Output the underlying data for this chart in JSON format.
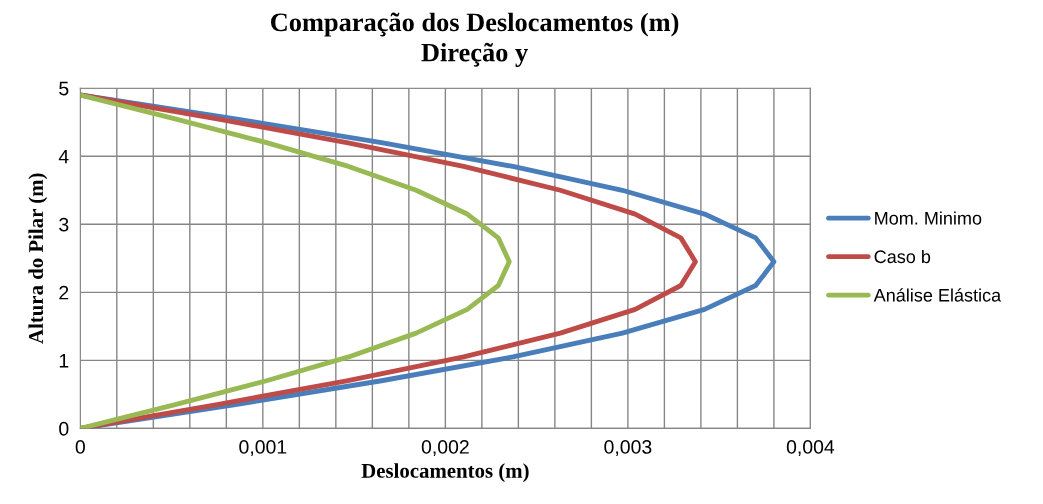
{
  "chart_data": {
    "type": "line",
    "title": "Comparação dos Deslocamentos (m)",
    "subtitle": "Direção y",
    "xlabel": "Deslocamentos (m)",
    "ylabel": "Altura do Pilar (m)",
    "series": [
      {
        "name": "Mom. Minimo",
        "color": "#4a7ebb",
        "x": [
          0,
          0.00085,
          0.00165,
          0.00237,
          0.00297,
          0.00342,
          0.0037,
          0.0038,
          0.0037,
          0.00342,
          0.00297,
          0.00237,
          0.00165,
          0.00085,
          0
        ],
        "values": [
          0,
          0.35,
          0.7,
          1.05,
          1.4,
          1.75,
          2.1,
          2.45,
          2.8,
          3.15,
          3.5,
          3.85,
          4.2,
          4.55,
          4.9
        ]
      },
      {
        "name": "Caso b",
        "color": "#be4b48",
        "x": [
          0,
          0.00075,
          0.00146,
          0.0021,
          0.00263,
          0.00304,
          0.00329,
          0.00337,
          0.00329,
          0.00304,
          0.00263,
          0.0021,
          0.00146,
          0.00075,
          0
        ],
        "values": [
          0,
          0.35,
          0.7,
          1.05,
          1.4,
          1.75,
          2.1,
          2.45,
          2.8,
          3.15,
          3.5,
          3.85,
          4.2,
          4.55,
          4.9
        ]
      },
      {
        "name": "Análise Elástica",
        "color": "#98b954",
        "x": [
          0,
          0.00052,
          0.00102,
          0.00147,
          0.00184,
          0.00212,
          0.00229,
          0.00235,
          0.00229,
          0.00212,
          0.00184,
          0.00147,
          0.00102,
          0.00052,
          0
        ],
        "values": [
          0,
          0.35,
          0.7,
          1.05,
          1.4,
          1.75,
          2.1,
          2.45,
          2.8,
          3.15,
          3.5,
          3.85,
          4.2,
          4.55,
          4.9
        ]
      }
    ],
    "xlim": [
      0,
      0.004
    ],
    "xticks": [
      {
        "value": 0,
        "label": "0"
      },
      {
        "value": 0.0002,
        "label": null
      },
      {
        "value": 0.0004,
        "label": null
      },
      {
        "value": 0.0006,
        "label": null
      },
      {
        "value": 0.0008,
        "label": null
      },
      {
        "value": 0.001,
        "label": "0,001"
      },
      {
        "value": 0.0012,
        "label": null
      },
      {
        "value": 0.0014,
        "label": null
      },
      {
        "value": 0.0016,
        "label": null
      },
      {
        "value": 0.0018,
        "label": null
      },
      {
        "value": 0.002,
        "label": "0,002"
      },
      {
        "value": 0.0022,
        "label": null
      },
      {
        "value": 0.0024,
        "label": null
      },
      {
        "value": 0.0026,
        "label": null
      },
      {
        "value": 0.0028,
        "label": null
      },
      {
        "value": 0.003,
        "label": "0,003"
      },
      {
        "value": 0.0032,
        "label": null
      },
      {
        "value": 0.0034,
        "label": null
      },
      {
        "value": 0.0036,
        "label": null
      },
      {
        "value": 0.0038,
        "label": null
      },
      {
        "value": 0.004,
        "label": "0,004"
      }
    ],
    "ylim": [
      0,
      5
    ],
    "yticks": [
      0,
      1,
      2,
      3,
      4,
      5
    ],
    "grid": true,
    "legend": "right",
    "marker": "none",
    "line_style": "solid"
  }
}
